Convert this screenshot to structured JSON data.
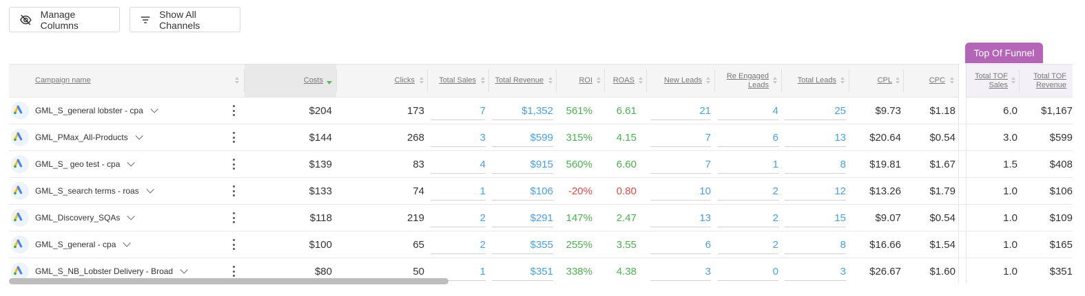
{
  "toolbar": {
    "manage_columns_label": "Manage Columns",
    "show_channels_label": "Show All Channels"
  },
  "tof_tab_label": "Top Of Funnel",
  "headers": {
    "campaign": "Campaign name",
    "costs": "Costs",
    "clicks": "Clicks",
    "total_sales": "Total Sales",
    "total_revenue": "Total Revenue",
    "roi": "ROI",
    "roas": "ROAS",
    "new_leads": "New Leads",
    "re_engaged_1": "Re Engaged",
    "re_engaged_2": "Leads",
    "total_leads": "Total Leads",
    "cpl": "CPL",
    "cpc": "CPC",
    "tof_sales_1": "Total TOF",
    "tof_sales_2": "Sales",
    "tof_revenue_1": "Total TOF",
    "tof_revenue_2": "Revenue"
  },
  "rows": [
    {
      "campaign": "GML_S_general lobster - cpa",
      "costs": "$204",
      "clicks": "173",
      "total_sales": "7",
      "total_revenue": "$1,352",
      "roi": "561%",
      "roas": "6.61",
      "new_leads": "21",
      "re_engaged": "4",
      "total_leads": "25",
      "cpl": "$9.73",
      "cpc": "$1.18",
      "tof_sales": "6.0",
      "tof_revenue": "$1,167"
    },
    {
      "campaign": "GML_PMax_All-Products",
      "costs": "$144",
      "clicks": "268",
      "total_sales": "3",
      "total_revenue": "$599",
      "roi": "315%",
      "roas": "4.15",
      "new_leads": "7",
      "re_engaged": "6",
      "total_leads": "13",
      "cpl": "$20.64",
      "cpc": "$0.54",
      "tof_sales": "3.0",
      "tof_revenue": "$599"
    },
    {
      "campaign": "GML_S_ geo test - cpa",
      "costs": "$139",
      "clicks": "83",
      "total_sales": "4",
      "total_revenue": "$915",
      "roi": "560%",
      "roas": "6.60",
      "new_leads": "7",
      "re_engaged": "1",
      "total_leads": "8",
      "cpl": "$19.81",
      "cpc": "$1.67",
      "tof_sales": "1.5",
      "tof_revenue": "$408"
    },
    {
      "campaign": "GML_S_search terms - roas",
      "costs": "$133",
      "clicks": "74",
      "total_sales": "1",
      "total_revenue": "$106",
      "roi": "-20%",
      "roas": "0.80",
      "new_leads": "10",
      "re_engaged": "2",
      "total_leads": "12",
      "cpl": "$13.26",
      "cpc": "$1.79",
      "tof_sales": "1.0",
      "tof_revenue": "$106"
    },
    {
      "campaign": "GML_Discovery_SQAs",
      "costs": "$118",
      "clicks": "219",
      "total_sales": "2",
      "total_revenue": "$291",
      "roi": "147%",
      "roas": "2.47",
      "new_leads": "13",
      "re_engaged": "2",
      "total_leads": "15",
      "cpl": "$9.07",
      "cpc": "$0.54",
      "tof_sales": "1.0",
      "tof_revenue": "$109"
    },
    {
      "campaign": "GML_S_general - cpa",
      "costs": "$100",
      "clicks": "65",
      "total_sales": "2",
      "total_revenue": "$355",
      "roi": "255%",
      "roas": "3.55",
      "new_leads": "6",
      "re_engaged": "2",
      "total_leads": "8",
      "cpl": "$16.66",
      "cpc": "$1.54",
      "tof_sales": "1.0",
      "tof_revenue": "$165"
    },
    {
      "campaign": "GML_S_NB_Lobster Delivery - Broad",
      "costs": "$80",
      "clicks": "50",
      "total_sales": "1",
      "total_revenue": "$351",
      "roi": "338%",
      "roas": "4.38",
      "new_leads": "3",
      "re_engaged": "0",
      "total_leads": "3",
      "cpl": "$26.67",
      "cpc": "$1.60",
      "tof_sales": "1.0",
      "tof_revenue": "$351"
    }
  ],
  "colors": {
    "positive": "#4caf50",
    "negative": "#e04848",
    "link": "#4a9fe0",
    "tof_accent": "#b565b8"
  },
  "icons": {
    "manage_columns": "eye-slash-icon",
    "show_channels": "filter-lines-icon",
    "row_channel": "google-ads-icon",
    "row_menu": "kebab-icon",
    "row_expand": "chevron-down-icon"
  }
}
